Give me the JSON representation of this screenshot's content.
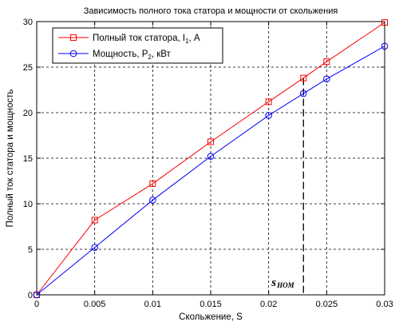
{
  "chart_data": {
    "type": "line",
    "title": "Зависимость полного тока статора и мощности от скольжения",
    "xlabel": "Скольжение, S",
    "ylabel": "Полный ток статора и мощность",
    "xlim": [
      0,
      0.03
    ],
    "ylim": [
      0,
      30
    ],
    "xticks": [
      0,
      0.005,
      0.01,
      0.015,
      0.02,
      0.025,
      0.03
    ],
    "xtick_labels": [
      "0",
      "0.005",
      "0.01",
      "0.015",
      "0.02",
      "0.025",
      "0.03"
    ],
    "yticks": [
      0,
      5,
      10,
      15,
      20,
      25,
      30
    ],
    "ytick_labels": [
      "0",
      "5",
      "10",
      "15",
      "20",
      "25",
      "30"
    ],
    "grid": true,
    "legend_position": "top-left",
    "series": [
      {
        "name": "Полный ток статора, I",
        "name_sub": "1",
        "name_suffix": ", А",
        "color": "#ff0000",
        "marker": "square",
        "points": [
          [
            0,
            0
          ],
          [
            0.005,
            8.2
          ],
          [
            0.01,
            12.2
          ],
          [
            0.015,
            16.8
          ],
          [
            0.02,
            21.2
          ],
          [
            0.023,
            23.8
          ],
          [
            0.025,
            25.6
          ],
          [
            0.03,
            29.9
          ]
        ]
      },
      {
        "name": "Мощность, P",
        "name_sub": "2",
        "name_suffix": ", кВт",
        "color": "#0000ff",
        "marker": "circle",
        "points": [
          [
            0,
            0
          ],
          [
            0.005,
            5.2
          ],
          [
            0.01,
            10.4
          ],
          [
            0.015,
            15.2
          ],
          [
            0.02,
            19.7
          ],
          [
            0.023,
            22.1
          ],
          [
            0.025,
            23.7
          ],
          [
            0.03,
            27.3
          ]
        ]
      }
    ],
    "annotation": {
      "text": "s",
      "sub": "НОМ",
      "x": 0.023,
      "y": 23.8
    }
  }
}
